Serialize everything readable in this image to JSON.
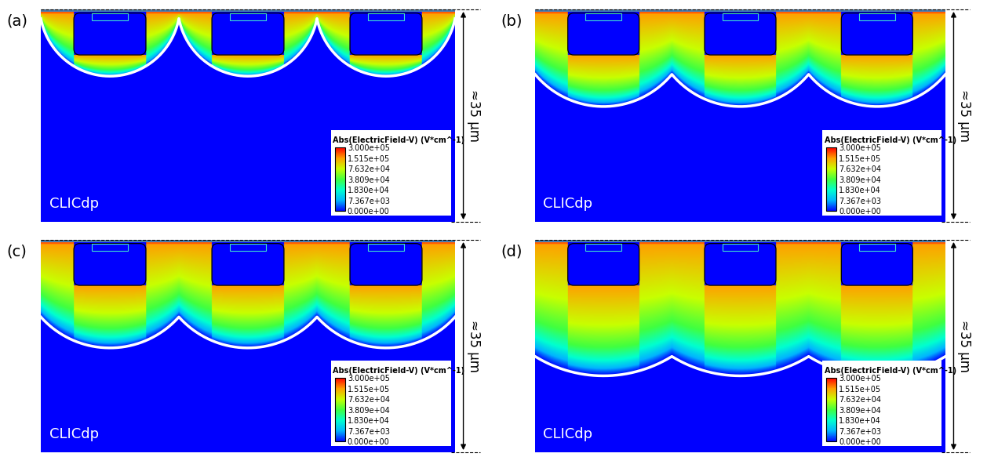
{
  "chart_data": {
    "type": "field_map",
    "watermark": "CLICdp",
    "depth": {
      "value": 35,
      "label": "≈35 µm"
    },
    "pixels_per_panel": 3,
    "pixel_pitch_um": 23,
    "colorbar": {
      "title": "Abs(ElectricField-V) (V*cm^-1)",
      "ticks": [
        {
          "value": 0,
          "label": "0.000e+00"
        },
        {
          "value": 7367,
          "label": "7.367e+03"
        },
        {
          "value": 18300,
          "label": "1.830e+04"
        },
        {
          "value": 38090,
          "label": "3.809e+04"
        },
        {
          "value": 76320,
          "label": "7.632e+04"
        },
        {
          "value": 151500,
          "label": "1.515e+05"
        },
        {
          "value": 300000,
          "label": "3.000e+05"
        }
      ]
    },
    "panels": [
      {
        "label": "(a)",
        "depletion_depth_um": {
          "below_well": 11,
          "between_wells": 1.5
        }
      },
      {
        "label": "(b)",
        "depletion_depth_um": {
          "below_well": 16,
          "between_wells": 10.7
        }
      },
      {
        "label": "(c)",
        "depletion_depth_um": {
          "below_well": 17.8,
          "between_wells": 12.7
        }
      },
      {
        "label": "(d)",
        "depletion_depth_um": {
          "below_well": 22.4,
          "between_wells": 19.2
        }
      }
    ]
  }
}
